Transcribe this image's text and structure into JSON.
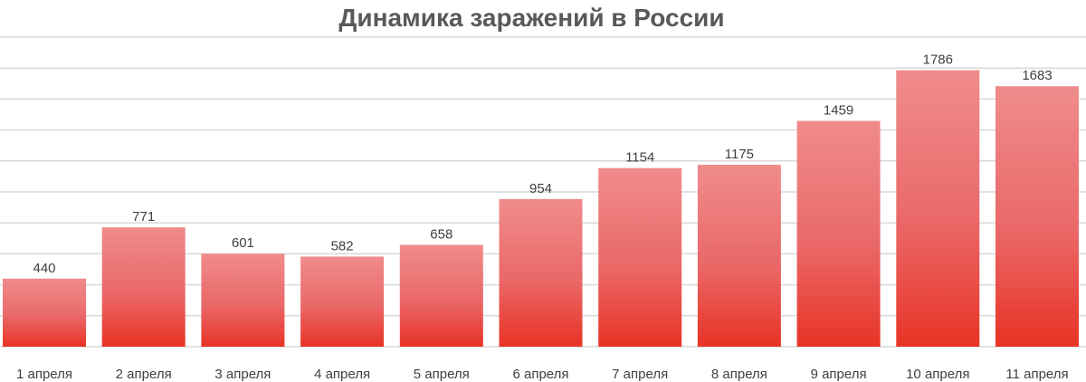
{
  "chart_data": {
    "type": "bar",
    "title": "Динамика заражений в России",
    "categories": [
      "1 апреля",
      "2 апреля",
      "3 апреля",
      "4 апреля",
      "5 апреля",
      "6 апреля",
      "7 апреля",
      "8 апреля",
      "9 апреля",
      "10 апреля",
      "11 апреля"
    ],
    "values": [
      440,
      771,
      601,
      582,
      658,
      954,
      1154,
      1175,
      1459,
      1786,
      1683
    ],
    "ylim": [
      0,
      2000
    ],
    "grid": true,
    "colors": {
      "bar_top": "#f08c8c",
      "bar_mid": "#ea6868",
      "bar_bottom": "#e83325",
      "grid": "#d9d9d9",
      "text": "#404040",
      "title": "#595959"
    }
  }
}
